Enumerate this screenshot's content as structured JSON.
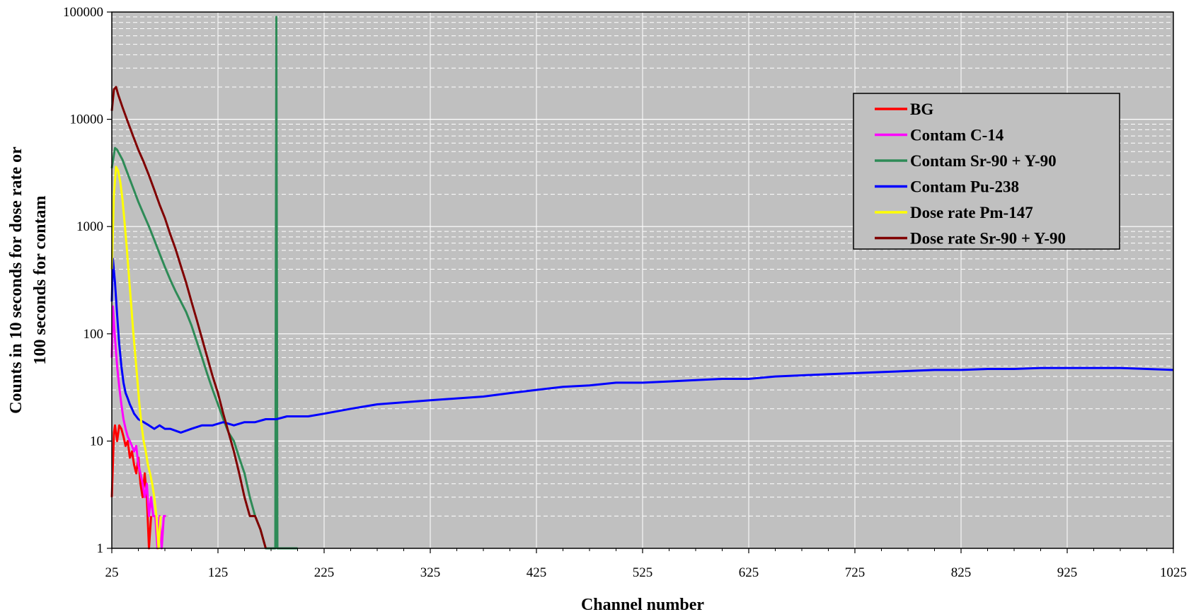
{
  "chart_data": {
    "type": "line",
    "title": "",
    "xlabel": "Channel number",
    "ylabel_lines": [
      "Counts in 10 seconds for dose rate or",
      "100 seconds for contam"
    ],
    "xlim": [
      25,
      1025
    ],
    "ylim": [
      1,
      100000
    ],
    "y_scale": "log",
    "x_ticks": [
      25,
      125,
      225,
      325,
      425,
      525,
      625,
      725,
      825,
      925,
      1025
    ],
    "x_tick_labels": [
      "25",
      "125",
      "225",
      "325",
      "425",
      "525",
      "625",
      "725",
      "825",
      "925",
      "1025"
    ],
    "y_ticks": [
      1,
      10,
      100,
      1000,
      10000,
      100000
    ],
    "y_tick_labels": [
      "1",
      "10",
      "100",
      "1000",
      "10000",
      "100000"
    ],
    "grid": true,
    "plot_background": "#c0c0c0",
    "legend_position": "top-right",
    "series": [
      {
        "name": "BG",
        "color": "#ff0000",
        "x": [
          25,
          27,
          28,
          30,
          32,
          34,
          36,
          38,
          40,
          42,
          44,
          46,
          48,
          50,
          52,
          54,
          56,
          58,
          60,
          62
        ],
        "values": [
          3,
          12,
          14,
          10,
          14,
          13,
          11,
          9,
          10,
          7,
          8,
          6,
          5,
          7,
          4,
          3,
          5,
          3,
          1,
          2
        ]
      },
      {
        "name": "Contam C-14",
        "color": "#ff00ff",
        "x": [
          25,
          26,
          28,
          30,
          32,
          34,
          36,
          38,
          40,
          42,
          44,
          46,
          48,
          50,
          52,
          54,
          56,
          58,
          60,
          62,
          64,
          66,
          68,
          70,
          72,
          74,
          76
        ],
        "values": [
          60,
          180,
          90,
          50,
          32,
          22,
          16,
          13,
          11,
          10,
          9,
          8,
          9,
          6,
          5,
          4,
          3,
          4,
          2,
          3,
          2,
          2,
          1,
          2,
          1,
          2,
          2
        ]
      },
      {
        "name": "Contam Sr-90 + Y-90",
        "color": "#2e8b57",
        "x": [
          25,
          28,
          30,
          35,
          40,
          45,
          50,
          55,
          60,
          65,
          70,
          75,
          80,
          85,
          90,
          95,
          100,
          105,
          110,
          115,
          120,
          125,
          130,
          135,
          140,
          145,
          150,
          155,
          160,
          165,
          170,
          175,
          179,
          180,
          181,
          182,
          183,
          190,
          200
        ],
        "values": [
          3500,
          5400,
          5200,
          4200,
          3100,
          2300,
          1700,
          1300,
          1000,
          750,
          560,
          420,
          320,
          250,
          200,
          160,
          120,
          85,
          60,
          42,
          30,
          22,
          16,
          12,
          10,
          7,
          5,
          3,
          2,
          1.5,
          1,
          1,
          1,
          90000,
          1,
          1,
          1,
          1,
          1
        ]
      },
      {
        "name": "Contam Pu-238",
        "color": "#0000ff",
        "x": [
          25,
          26,
          28,
          30,
          32,
          34,
          36,
          38,
          40,
          42,
          44,
          46,
          48,
          50,
          55,
          60,
          65,
          70,
          75,
          80,
          90,
          100,
          110,
          120,
          130,
          140,
          150,
          160,
          170,
          180,
          190,
          200,
          210,
          225,
          250,
          275,
          300,
          325,
          350,
          375,
          400,
          425,
          450,
          475,
          500,
          525,
          550,
          575,
          600,
          625,
          650,
          675,
          700,
          725,
          750,
          775,
          800,
          825,
          850,
          875,
          900,
          925,
          950,
          975,
          1000,
          1025
        ],
        "values": [
          200,
          500,
          300,
          150,
          80,
          50,
          35,
          28,
          25,
          22,
          20,
          18,
          17,
          16,
          15,
          14,
          13,
          14,
          13,
          13,
          12,
          13,
          14,
          14,
          15,
          14,
          15,
          15,
          16,
          16,
          17,
          17,
          17,
          18,
          20,
          22,
          23,
          24,
          25,
          26,
          28,
          30,
          32,
          33,
          35,
          35,
          36,
          37,
          38,
          38,
          40,
          41,
          42,
          43,
          44,
          45,
          46,
          46,
          47,
          47,
          48,
          48,
          48,
          48,
          47,
          46
        ]
      },
      {
        "name": "Dose rate Pm-147",
        "color": "#ffff00",
        "x": [
          25,
          27,
          29,
          31,
          33,
          35,
          37,
          39,
          41,
          43,
          45,
          47,
          49,
          51,
          53,
          55,
          57,
          59,
          61,
          63,
          65,
          67,
          69,
          71
        ],
        "values": [
          400,
          2000,
          3600,
          3300,
          2600,
          1800,
          1100,
          650,
          360,
          200,
          110,
          65,
          38,
          22,
          14,
          10,
          8,
          6,
          5,
          4,
          3,
          2,
          1,
          2
        ]
      },
      {
        "name": "Dose rate Sr-90 + Y-90",
        "color": "#800000",
        "x": [
          25,
          27,
          29,
          31,
          35,
          40,
          45,
          50,
          55,
          60,
          65,
          70,
          75,
          80,
          85,
          90,
          95,
          100,
          105,
          110,
          115,
          120,
          125,
          130,
          135,
          140,
          145,
          150,
          155,
          160,
          165,
          170
        ],
        "values": [
          12000,
          19000,
          20000,
          17000,
          13000,
          9500,
          7000,
          5200,
          4000,
          3000,
          2200,
          1600,
          1200,
          850,
          620,
          430,
          300,
          200,
          135,
          90,
          60,
          40,
          28,
          18,
          12,
          8,
          5,
          3,
          2,
          2,
          1.5,
          1
        ]
      }
    ]
  }
}
